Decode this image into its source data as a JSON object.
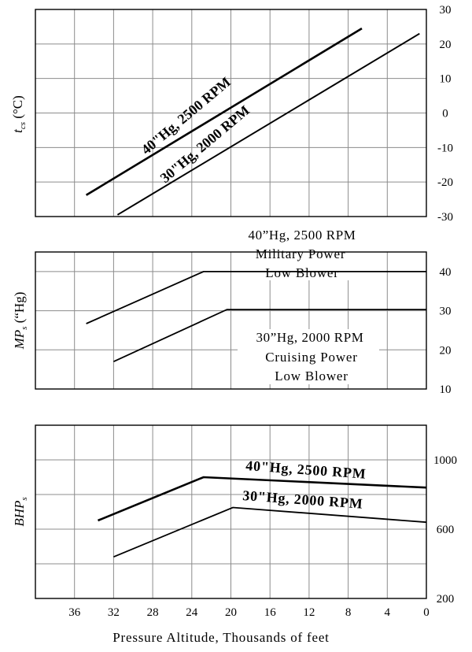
{
  "chart_data": [
    {
      "type": "line",
      "ylabel": "t_cs (°C)",
      "ylabel_main": "t",
      "ylabel_sub": "cs",
      "ylabel_rest": " (°C)",
      "xlim": [
        0,
        40
      ],
      "x_reversed": true,
      "ylim": [
        -30,
        30
      ],
      "yticks": [
        30,
        20,
        10,
        0,
        -10,
        -20,
        -30
      ],
      "grid": true,
      "series": [
        {
          "name": "40\"Hg, 2500 RPM",
          "x": [
            34.8,
            6.6
          ],
          "y": [
            -23.8,
            24.5
          ],
          "stroke_width": 2.6
        },
        {
          "name": "30\"Hg, 2000 RPM",
          "x": [
            31.6,
            0.7
          ],
          "y": [
            -29.5,
            23.0
          ],
          "stroke_width": 2.0
        }
      ]
    },
    {
      "type": "line",
      "ylabel": "MP_s (\"Hg)",
      "ylabel_main": "MP",
      "ylabel_sub": "s",
      "ylabel_rest": " (“Hg)",
      "xlim": [
        0,
        40
      ],
      "x_reversed": true,
      "ylim": [
        10,
        45
      ],
      "yticks": [
        40,
        30,
        20,
        10
      ],
      "grid": true,
      "series": [
        {
          "name": "40\"Hg, 2500 RPM",
          "x": [
            34.8,
            22.8,
            0
          ],
          "y": [
            26.7,
            40,
            40
          ],
          "stroke_width": 1.8
        },
        {
          "name": "30\"Hg, 2000 RPM",
          "x": [
            32.0,
            20.4,
            0
          ],
          "y": [
            17.0,
            30.3,
            30.3
          ],
          "stroke_width": 1.8
        }
      ],
      "annotations": [
        {
          "lines": [
            "40”Hg, 2500 RPM",
            "Military Power",
            "Low Blower"
          ]
        },
        {
          "lines": [
            "30”Hg, 2000 RPM",
            "Cruising Power",
            "Low Blower"
          ]
        }
      ]
    },
    {
      "type": "line",
      "ylabel": "BHP_s",
      "ylabel_main": "BHP",
      "ylabel_sub": "s",
      "xlim": [
        0,
        40
      ],
      "x_reversed": true,
      "ylim": [
        200,
        1100
      ],
      "yticks": [
        1000,
        600,
        200
      ],
      "xticks": [
        36,
        32,
        28,
        24,
        20,
        16,
        12,
        8,
        4,
        0
      ],
      "xlabel": "Pressure Altitude, Thousands of feet",
      "grid": true,
      "series": [
        {
          "name": "40\"Hg, 2500 RPM",
          "x": [
            33.6,
            22.8,
            0
          ],
          "y": [
            650,
            900,
            840
          ],
          "stroke_width": 2.6
        },
        {
          "name": "30\"Hg, 2000 RPM",
          "x": [
            32.0,
            19.8,
            0
          ],
          "y": [
            440,
            725,
            640
          ],
          "stroke_width": 1.8
        }
      ],
      "annotations": [
        {
          "text": "40\"Hg, 2500 RPM"
        },
        {
          "text": "30\"Hg, 2000 RPM"
        }
      ]
    }
  ]
}
